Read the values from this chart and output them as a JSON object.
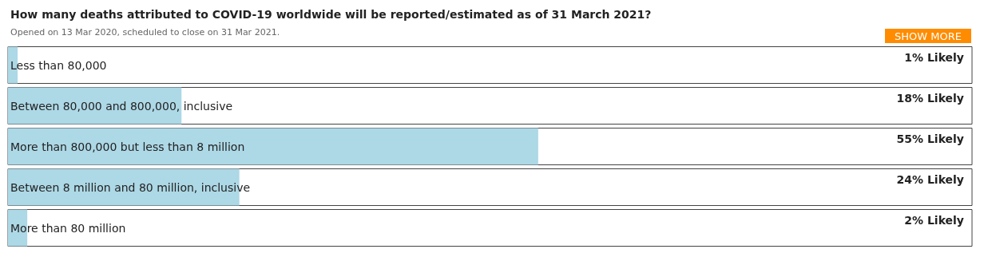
{
  "chart_data": {
    "type": "bar",
    "orientation": "horizontal",
    "title": "How many deaths attributed to COVID-19 worldwide will be reported/estimated as of 31 March 2021?",
    "subtitle": "Opened on 13 Mar 2020, scheduled to close on 31 Mar 2021.",
    "annotations": [
      "SHOW MORE"
    ],
    "categories": [
      "Less than 80,000",
      "Between 80,000 and 800,000, inclusive",
      "More than 800,000 but less than 8 million",
      "Between 8 million and 80 million, inclusive",
      "More than 80 million"
    ],
    "values": [
      1,
      18,
      55,
      24,
      2
    ],
    "value_labels": [
      "1% Likely",
      "18% Likely",
      "55% Likely",
      "24% Likely",
      "2% Likely"
    ],
    "color": "#add8e6",
    "tick_labels": "y"
  }
}
